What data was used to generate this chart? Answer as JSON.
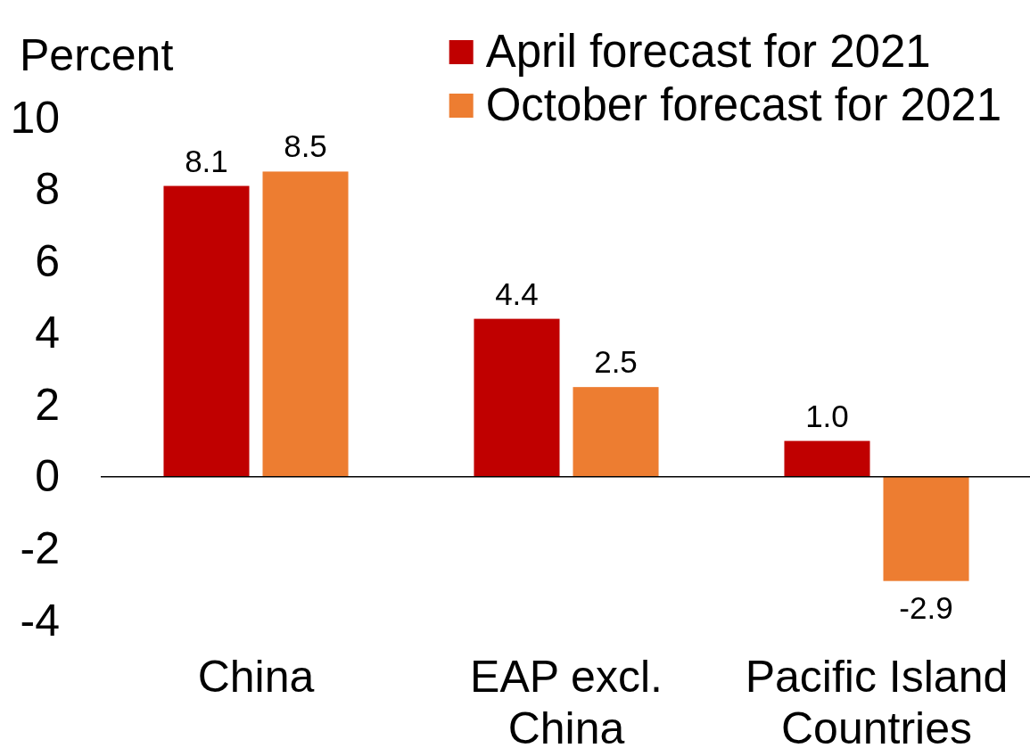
{
  "chart_data": {
    "type": "bar",
    "ylabel": "Percent",
    "categories": [
      "China",
      "EAP excl. China",
      "Pacific Island Countries"
    ],
    "series": [
      {
        "name": "April forecast for 2021",
        "color": "#c00000",
        "values": [
          8.1,
          4.4,
          1.0
        ],
        "value_labels": [
          "8.1",
          "4.4",
          "1.0"
        ]
      },
      {
        "name": "October forecast for 2021",
        "color": "#ed7d31",
        "values": [
          8.5,
          2.5,
          -2.9
        ],
        "value_labels": [
          "8.5",
          "2.5",
          "-2.9"
        ]
      }
    ],
    "ylim": [
      -4,
      10
    ],
    "yticks": [
      -4,
      -2,
      0,
      2,
      4,
      6,
      8,
      10
    ],
    "legend": "top right"
  }
}
